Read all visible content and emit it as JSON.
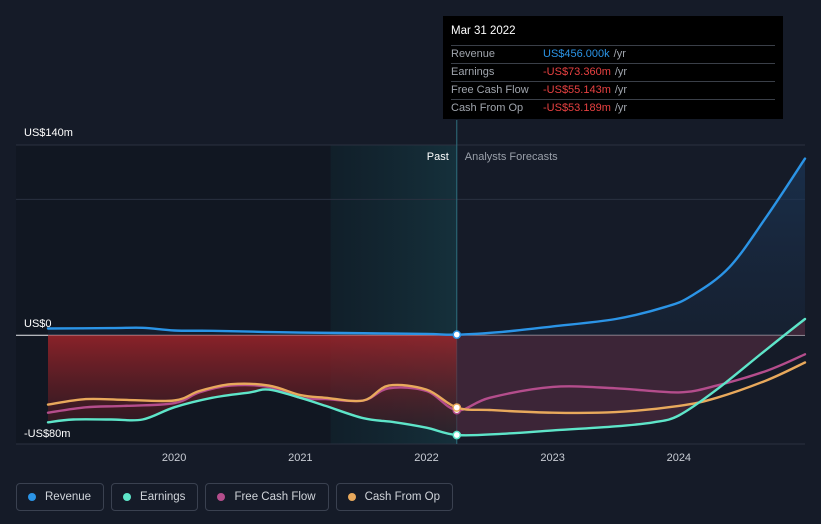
{
  "chart_data": {
    "type": "line",
    "y_axis": {
      "top_label": "US$140m",
      "zero_label": "US$0",
      "bottom_label": "-US$80m",
      "ylim": [
        -80,
        140
      ]
    },
    "x_axis": {
      "ticks": [
        "2020",
        "2021",
        "2022",
        "2023",
        "2024"
      ],
      "xlim": [
        2019.0,
        2025.0
      ]
    },
    "divider": {
      "x": 2022.24,
      "past_label": "Past",
      "forecast_label": "Analysts Forecasts"
    },
    "past_shade_start": 2021.24,
    "series": [
      {
        "name": "Revenue",
        "color": "#2b94e6",
        "points": [
          [
            2019.0,
            5
          ],
          [
            2019.5,
            5.3
          ],
          [
            2019.75,
            5.5
          ],
          [
            2020.0,
            3.5
          ],
          [
            2020.3,
            3.3
          ],
          [
            2020.7,
            2.5
          ],
          [
            2021.0,
            2
          ],
          [
            2021.5,
            1.5
          ],
          [
            2022.0,
            1
          ],
          [
            2022.24,
            0.46
          ],
          [
            2022.6,
            2.5
          ],
          [
            2023.0,
            6.5
          ],
          [
            2023.5,
            12
          ],
          [
            2023.9,
            21
          ],
          [
            2024.1,
            29
          ],
          [
            2024.4,
            50
          ],
          [
            2024.7,
            88
          ],
          [
            2025.0,
            130
          ]
        ]
      },
      {
        "name": "Earnings",
        "color": "#5ee5c9",
        "points": [
          [
            2019.0,
            -64
          ],
          [
            2019.2,
            -62
          ],
          [
            2019.5,
            -62
          ],
          [
            2019.75,
            -62
          ],
          [
            2020.0,
            -53
          ],
          [
            2020.3,
            -46
          ],
          [
            2020.6,
            -42
          ],
          [
            2020.75,
            -40
          ],
          [
            2021.0,
            -46
          ],
          [
            2021.2,
            -52
          ],
          [
            2021.5,
            -61
          ],
          [
            2021.75,
            -64
          ],
          [
            2022.0,
            -68
          ],
          [
            2022.24,
            -73.4
          ],
          [
            2022.6,
            -72.5
          ],
          [
            2023.0,
            -70
          ],
          [
            2023.5,
            -67
          ],
          [
            2023.8,
            -64
          ],
          [
            2024.0,
            -59
          ],
          [
            2024.3,
            -40
          ],
          [
            2024.7,
            -10
          ],
          [
            2025.0,
            12
          ]
        ]
      },
      {
        "name": "Free Cash Flow",
        "color": "#b44d8c",
        "points": [
          [
            2019.0,
            -57
          ],
          [
            2019.3,
            -53
          ],
          [
            2019.6,
            -52
          ],
          [
            2020.0,
            -50
          ],
          [
            2020.2,
            -42
          ],
          [
            2020.45,
            -37
          ],
          [
            2020.75,
            -38
          ],
          [
            2021.0,
            -46
          ],
          [
            2021.2,
            -47
          ],
          [
            2021.5,
            -48
          ],
          [
            2021.7,
            -39
          ],
          [
            2022.0,
            -41
          ],
          [
            2022.24,
            -55.1
          ],
          [
            2022.5,
            -46
          ],
          [
            2023.0,
            -38
          ],
          [
            2023.5,
            -39
          ],
          [
            2024.0,
            -42
          ],
          [
            2024.3,
            -37
          ],
          [
            2024.7,
            -26
          ],
          [
            2025.0,
            -14
          ]
        ]
      },
      {
        "name": "Cash From Op",
        "color": "#e8a95c",
        "points": [
          [
            2019.0,
            -51
          ],
          [
            2019.3,
            -47
          ],
          [
            2019.6,
            -47.5
          ],
          [
            2020.0,
            -48
          ],
          [
            2020.2,
            -41
          ],
          [
            2020.45,
            -36
          ],
          [
            2020.75,
            -37
          ],
          [
            2021.0,
            -44
          ],
          [
            2021.2,
            -46
          ],
          [
            2021.5,
            -48
          ],
          [
            2021.7,
            -37
          ],
          [
            2022.0,
            -40
          ],
          [
            2022.24,
            -53.2
          ],
          [
            2022.5,
            -55
          ],
          [
            2023.0,
            -57
          ],
          [
            2023.5,
            -56.5
          ],
          [
            2024.0,
            -52
          ],
          [
            2024.3,
            -46
          ],
          [
            2024.7,
            -33
          ],
          [
            2025.0,
            -20
          ]
        ]
      }
    ]
  },
  "tooltip": {
    "date": "Mar 31 2022",
    "rows": [
      {
        "label": "Revenue",
        "value": "US$456.000k",
        "unit": "/yr",
        "color": "#2b94e6"
      },
      {
        "label": "Earnings",
        "value": "-US$73.360m",
        "unit": "/yr",
        "color": "#e84141"
      },
      {
        "label": "Free Cash Flow",
        "value": "-US$55.143m",
        "unit": "/yr",
        "color": "#e84141"
      },
      {
        "label": "Cash From Op",
        "value": "-US$53.189m",
        "unit": "/yr",
        "color": "#e84141"
      }
    ]
  },
  "legend": [
    {
      "label": "Revenue",
      "color": "#2b94e6"
    },
    {
      "label": "Earnings",
      "color": "#5ee5c9"
    },
    {
      "label": "Free Cash Flow",
      "color": "#b44d8c"
    },
    {
      "label": "Cash From Op",
      "color": "#e8a95c"
    }
  ]
}
